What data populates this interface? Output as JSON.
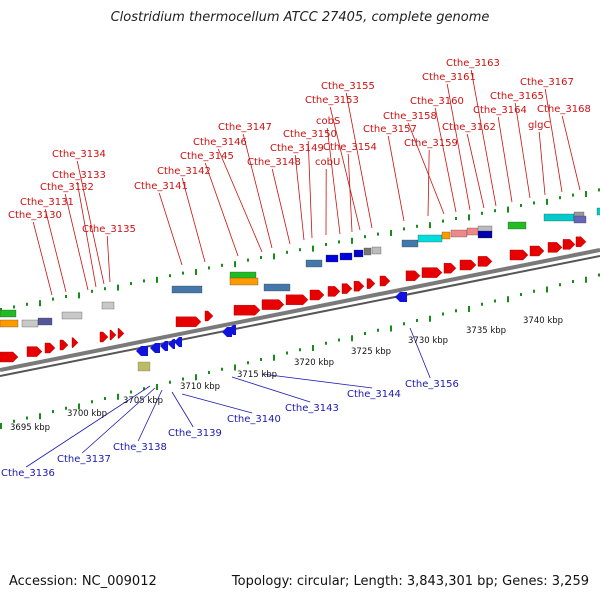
{
  "title": "Clostridium thermocellum ATCC 27405, complete genome",
  "accession": "Accession: NC_009012",
  "topology": "Topology: circular; Length: 3,843,301 bp; Genes: 3,259",
  "colors": {
    "forward_gene": "#e60000",
    "reverse_gene": "#1212dd",
    "forward_label": "#cc1111",
    "reverse_label": "#1a1ab0",
    "backbone": "#7a7a7a",
    "tick": "#1a8a1a"
  },
  "scale": {
    "unit": "kbp",
    "ticks": [
      {
        "kbp": 3695,
        "label": "3695 kbp"
      },
      {
        "kbp": 3700,
        "label": "3700 kbp"
      },
      {
        "kbp": 3705,
        "label": "3705 kbp"
      },
      {
        "kbp": 3710,
        "label": "3710 kbp"
      },
      {
        "kbp": 3715,
        "label": "3715 kbp"
      },
      {
        "kbp": 3720,
        "label": "3720 kbp"
      },
      {
        "kbp": 3725,
        "label": "3725 kbp"
      },
      {
        "kbp": 3730,
        "label": "3730 kbp"
      },
      {
        "kbp": 3735,
        "label": "3735 kbp"
      },
      {
        "kbp": 3740,
        "label": "3740 kbp"
      }
    ]
  },
  "forward_labels": [
    "Cthe_3130",
    "Cthe_3131",
    "Cthe_3132",
    "Cthe_3133",
    "Cthe_3134",
    "Cthe_3135",
    "Cthe_3141",
    "Cthe_3142",
    "Cthe_3145",
    "Cthe_3146",
    "Cthe_3147",
    "Cthe_3148",
    "Cthe_3149",
    "Cthe_3150",
    "cobU",
    "cobS",
    "Cthe_3154",
    "Cthe_3153",
    "Cthe_3155",
    "Cthe_3157",
    "Cthe_3159",
    "Cthe_3158",
    "Cthe_3160",
    "Cthe_3161",
    "Cthe_3162",
    "Cthe_3163",
    "Cthe_3164",
    "Cthe_3165",
    "glgC",
    "Cthe_3167",
    "Cthe_3168"
  ],
  "reverse_labels": [
    "Cthe_3136",
    "Cthe_3137",
    "Cthe_3138",
    "Cthe_3139",
    "Cthe_3140",
    "Cthe_3143",
    "Cthe_3144",
    "Cthe_3156"
  ]
}
